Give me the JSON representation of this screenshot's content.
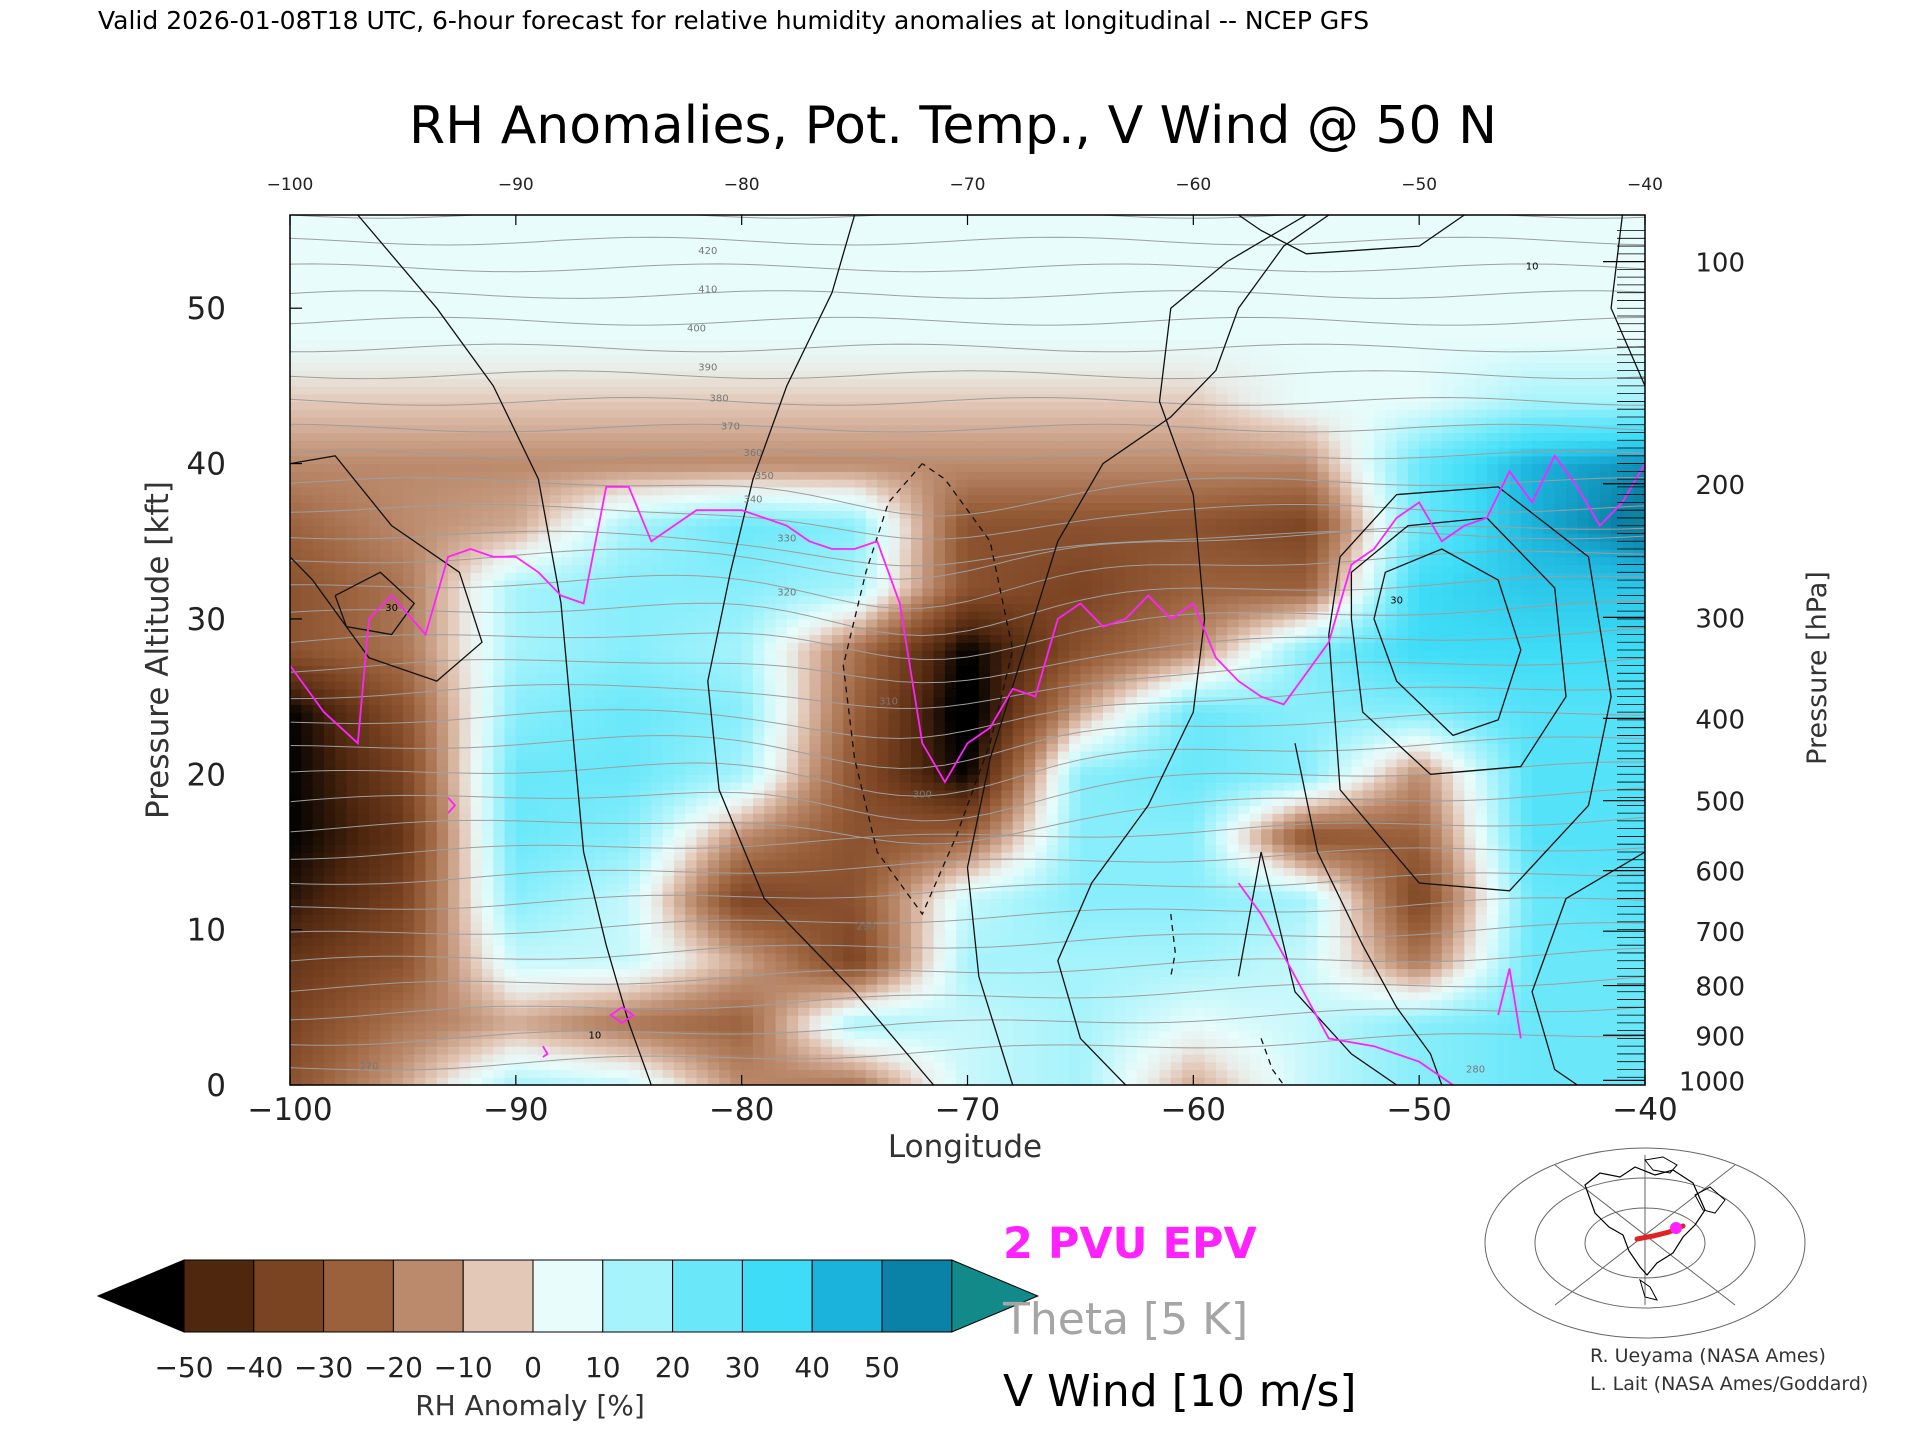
{
  "header": {
    "valid_line": "Valid 2026-01-08T18 UTC, 6-hour forecast for relative humidity anomalies at longitudinal -- NCEP GFS"
  },
  "chart_data": {
    "type": "heatmap",
    "title": "RH Anomalies, Pot. Temp., V Wind @ 50 N",
    "xlabel": "Longitude",
    "ylabel": "Pressure Altitude [kft]",
    "ylabel_right": "Pressure [hPa]",
    "xlim": [
      -100,
      -40
    ],
    "ylim": [
      0,
      56
    ],
    "x_ticks": [
      "-100",
      "-90",
      "-80",
      "-70",
      "-60",
      "-50",
      "-40"
    ],
    "x_ticks_top": [
      "-100",
      "-90",
      "-80",
      "-70",
      "-60",
      "-50",
      "-40"
    ],
    "y_ticks": [
      "0",
      "10",
      "20",
      "30",
      "40",
      "50"
    ],
    "pressure_ticks": [
      {
        "label": "100",
        "kft": 53.0
      },
      {
        "label": "200",
        "kft": 38.7
      },
      {
        "label": "300",
        "kft": 30.1
      },
      {
        "label": "400",
        "kft": 23.6
      },
      {
        "label": "500",
        "kft": 18.3
      },
      {
        "label": "600",
        "kft": 13.8
      },
      {
        "label": "700",
        "kft": 9.9
      },
      {
        "label": "800",
        "kft": 6.4
      },
      {
        "label": "900",
        "kft": 3.2
      },
      {
        "label": "1000",
        "kft": 0.3
      }
    ],
    "rh_anomaly_field": {
      "x": [
        -100,
        -95,
        -90,
        -85,
        -80,
        -75,
        -70,
        -65,
        -60,
        -55,
        -50,
        -45,
        -40
      ],
      "y": [
        0,
        4,
        8,
        12,
        16,
        20,
        24,
        28,
        32,
        36,
        40,
        44,
        48,
        52,
        56
      ],
      "values": [
        [
          -30,
          -10,
          15,
          10,
          -15,
          -20,
          10,
          15,
          -10,
          10,
          20,
          25,
          25
        ],
        [
          -35,
          -20,
          -10,
          -20,
          -25,
          15,
          10,
          15,
          5,
          10,
          20,
          25,
          25
        ],
        [
          -40,
          -30,
          10,
          10,
          -10,
          -35,
          15,
          15,
          15,
          10,
          -20,
          25,
          25
        ],
        [
          -50,
          -35,
          20,
          10,
          -35,
          -30,
          10,
          20,
          20,
          15,
          -35,
          25,
          30
        ],
        [
          -55,
          -40,
          25,
          20,
          -15,
          -30,
          -25,
          20,
          20,
          -30,
          -25,
          30,
          30
        ],
        [
          -55,
          -35,
          25,
          25,
          15,
          -30,
          -55,
          20,
          25,
          20,
          -15,
          30,
          30
        ],
        [
          -55,
          -30,
          20,
          25,
          20,
          -25,
          -60,
          -10,
          25,
          20,
          20,
          30,
          30
        ],
        [
          -30,
          -20,
          15,
          20,
          15,
          -20,
          -55,
          -30,
          -15,
          20,
          35,
          35,
          35
        ],
        [
          -30,
          -20,
          15,
          20,
          20,
          15,
          -30,
          -35,
          -25,
          -25,
          35,
          40,
          40
        ],
        [
          -25,
          -15,
          -10,
          15,
          25,
          20,
          -30,
          -30,
          -30,
          -35,
          25,
          45,
          55
        ],
        [
          -15,
          -15,
          -15,
          -15,
          -15,
          -15,
          -15,
          -15,
          -15,
          -15,
          25,
          45,
          50
        ],
        [
          -5,
          -5,
          -5,
          -5,
          -5,
          -5,
          -5,
          -5,
          -5,
          5,
          5,
          15,
          15
        ],
        [
          5,
          5,
          5,
          5,
          5,
          5,
          5,
          5,
          5,
          5,
          5,
          5,
          5
        ],
        [
          5,
          5,
          5,
          5,
          5,
          5,
          5,
          5,
          5,
          5,
          5,
          5,
          5
        ],
        [
          5,
          5,
          5,
          5,
          5,
          5,
          5,
          5,
          5,
          5,
          5,
          5,
          5
        ]
      ]
    },
    "theta_labels": [
      {
        "text": "420",
        "x": -81.5,
        "y": 53.5
      },
      {
        "text": "410",
        "x": -81.5,
        "y": 51.0
      },
      {
        "text": "400",
        "x": -82.0,
        "y": 48.5
      },
      {
        "text": "390",
        "x": -81.5,
        "y": 46.0
      },
      {
        "text": "380",
        "x": -81.0,
        "y": 44.0
      },
      {
        "text": "370",
        "x": -80.5,
        "y": 42.2
      },
      {
        "text": "360",
        "x": -79.5,
        "y": 40.5
      },
      {
        "text": "350",
        "x": -79.0,
        "y": 39.0
      },
      {
        "text": "340",
        "x": -79.5,
        "y": 37.5
      },
      {
        "text": "330",
        "x": -78.0,
        "y": 35.0
      },
      {
        "text": "320",
        "x": -78.0,
        "y": 31.5
      },
      {
        "text": "310",
        "x": -73.5,
        "y": 24.5
      },
      {
        "text": "300",
        "x": -72.0,
        "y": 18.5
      },
      {
        "text": "290",
        "x": -74.5,
        "y": 10.0
      },
      {
        "text": "280",
        "x": -47.5,
        "y": 0.8
      },
      {
        "text": "270",
        "x": -96.5,
        "y": 1.0
      }
    ],
    "v_wind_labels": [
      {
        "text": "10",
        "x": -86.5,
        "y": 3.0
      },
      {
        "text": "10",
        "x": -70.5,
        "y": 25.5
      },
      {
        "text": "10",
        "x": -45.0,
        "y": 52.5
      },
      {
        "text": "30",
        "x": -51.0,
        "y": 31.0
      },
      {
        "text": "30",
        "x": -95.5,
        "y": 30.5
      }
    ],
    "epv_2pvu": {
      "x": [
        -100,
        -98.5,
        -97,
        -96.5,
        -95.5,
        -94,
        -93,
        -92,
        -91,
        -90,
        -89,
        -88,
        -87,
        -86,
        -85,
        -84,
        -83,
        -82,
        -81,
        -80,
        -79,
        -78,
        -77,
        -76,
        -75,
        -74,
        -73,
        -72,
        -71,
        -70,
        -69,
        -68,
        -67,
        -66,
        -65,
        -64,
        -63,
        -62,
        -61,
        -60,
        -59,
        -58,
        -57,
        -56,
        -55,
        -54,
        -53,
        -52,
        -51,
        -50,
        -49,
        -48,
        -47,
        -46,
        -45,
        -44,
        -43,
        -42,
        -41,
        -40
      ],
      "y": [
        27,
        24,
        22,
        30,
        31.5,
        29,
        34,
        34.5,
        34,
        34,
        33,
        31.5,
        31,
        38.5,
        38.5,
        35,
        36,
        37,
        37,
        37,
        36.5,
        36,
        35,
        34.5,
        34.5,
        35,
        31,
        22,
        19.5,
        22,
        23,
        25.5,
        25,
        30,
        31,
        29.5,
        30,
        31.5,
        30,
        31,
        27.5,
        26,
        25,
        24.5,
        26.5,
        28.5,
        33.5,
        34.5,
        36.5,
        37.5,
        35,
        36,
        36.5,
        39.5,
        37.5,
        40.5,
        38.5,
        36,
        37.5,
        40
      ]
    },
    "colorbar": {
      "ticks": [
        "-50",
        "-40",
        "-30",
        "-20",
        "-10",
        "0",
        "10",
        "20",
        "30",
        "40",
        "50"
      ],
      "label": "RH Anomaly [%]",
      "colors": [
        "#000000",
        "#4f270f",
        "#7a4322",
        "#9a613c",
        "#bb8a6c",
        "#e3c8b8",
        "#e7fcfb",
        "#a6f3fb",
        "#6ae8fa",
        "#3edcf6",
        "#1bb3dc",
        "#0a82a8",
        "#128a8a"
      ]
    },
    "legend": [
      "2 PVU EPV",
      "Theta [5 K]",
      "V Wind [10 m/s]"
    ],
    "series_colors": {
      "epv": "#ff22ff",
      "theta": "#a5a5a5",
      "vwind": "#000000"
    }
  },
  "credits": [
    "R. Ueyama (NASA Ames)",
    "L. Lait (NASA Ames/Goddard)"
  ]
}
